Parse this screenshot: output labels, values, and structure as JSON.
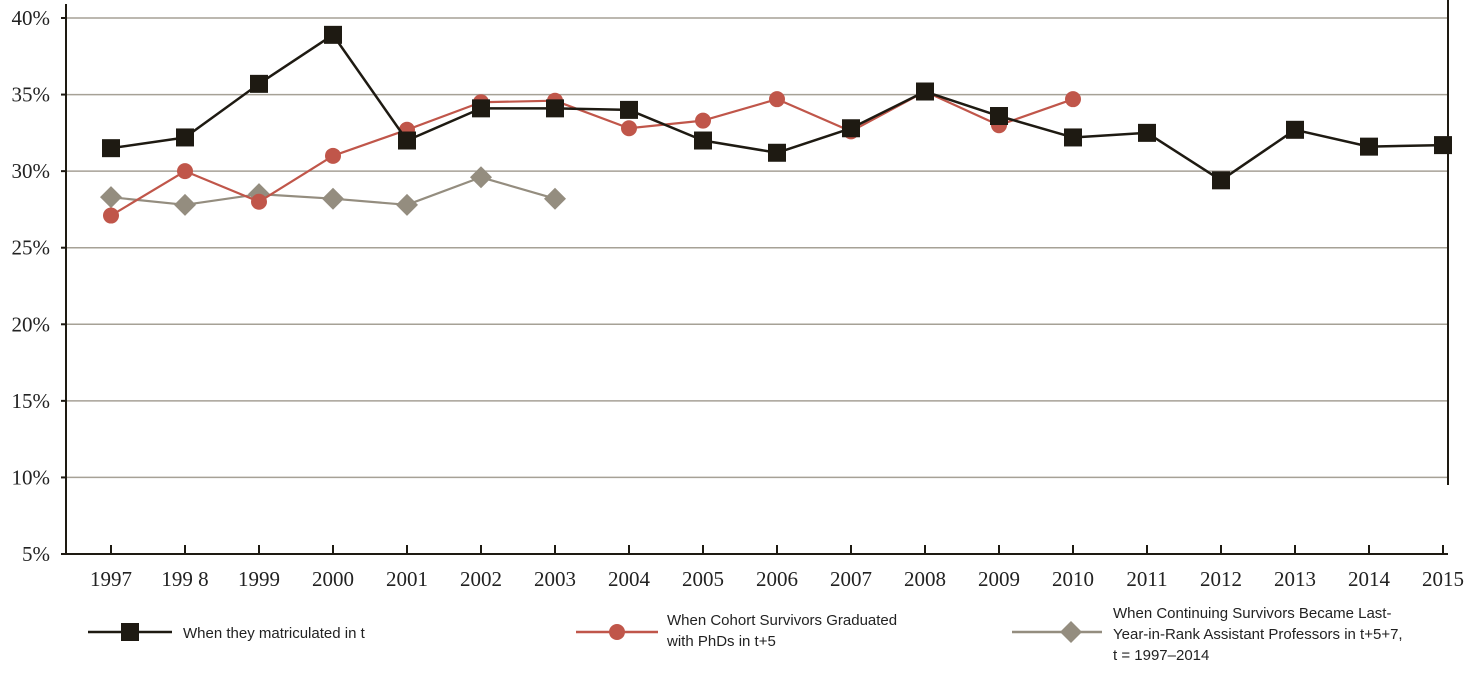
{
  "chart_data": {
    "type": "line",
    "title": "",
    "xlabel": "",
    "ylabel": "",
    "categories": [
      "1997",
      "199 8",
      "1999",
      "2000",
      "2001",
      "2002",
      "2003",
      "2004",
      "2005",
      "2006",
      "2007",
      "2008",
      "2009",
      "2010",
      "2011",
      "2012",
      "2013",
      "2014",
      "2015"
    ],
    "y_ticks": [
      "5%",
      "10%",
      "15%",
      "20%",
      "25%",
      "30%",
      "35%",
      "40%"
    ],
    "ylim": [
      5,
      40
    ],
    "y_unit": "%",
    "grid": true,
    "legend_position": "bottom",
    "series": [
      {
        "name": "When they matriculated in t",
        "marker": "square",
        "color": "#1e1a12",
        "values": [
          31.5,
          32.2,
          35.7,
          38.9,
          32.0,
          34.1,
          34.1,
          34.0,
          32.0,
          31.2,
          32.8,
          35.2,
          33.6,
          32.2,
          32.5,
          29.4,
          32.7,
          31.6,
          31.7
        ]
      },
      {
        "name": "When Cohort Survivors Graduated with PhDs in t+5",
        "marker": "circle",
        "color": "#c0564a",
        "values": [
          27.1,
          30.0,
          28.0,
          31.0,
          32.7,
          34.5,
          34.6,
          32.8,
          33.3,
          34.7,
          32.6,
          35.2,
          33.0,
          34.7,
          null,
          null,
          null,
          null,
          null
        ]
      },
      {
        "name": "When Continuing Survivors Became Last-Year-in-Rank Assistant Professors in t+5+7, t = 1997–2014",
        "marker": "diamond",
        "color": "#948d7f",
        "values": [
          28.3,
          27.8,
          28.5,
          28.2,
          27.8,
          29.6,
          28.2,
          null,
          null,
          null,
          null,
          null,
          null,
          null,
          null,
          null,
          null,
          null,
          null
        ]
      }
    ],
    "legend": [
      {
        "lines": [
          "When they matriculated in t"
        ]
      },
      {
        "lines": [
          "When Cohort Survivors Graduated",
          "with PhDs in t+5"
        ]
      },
      {
        "lines": [
          "When Continuing Survivors Became Last-",
          "Year-in-Rank Assistant Professors in t+5+7,",
          "t = 1997–2014"
        ]
      }
    ]
  }
}
